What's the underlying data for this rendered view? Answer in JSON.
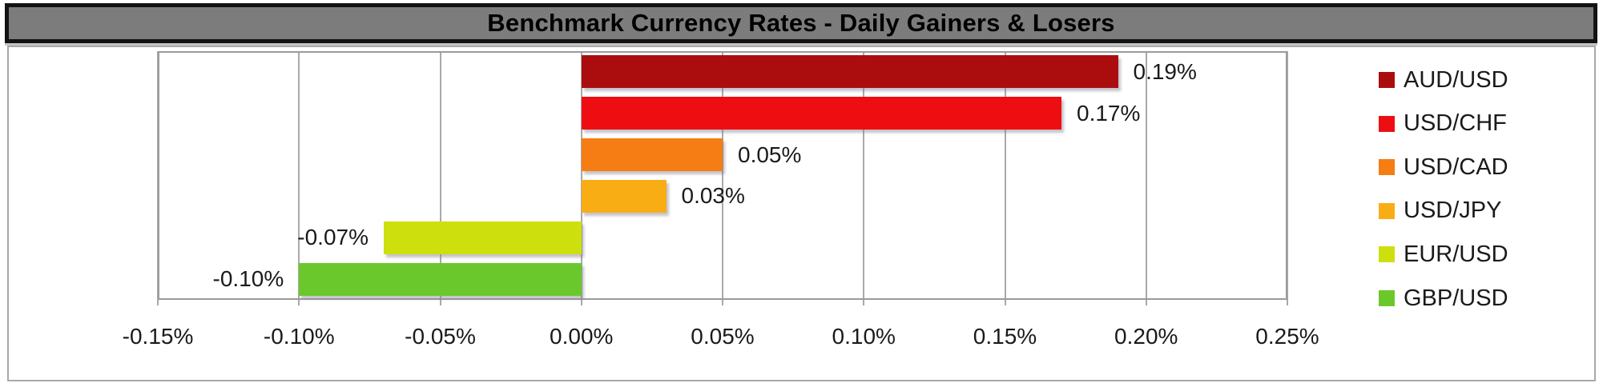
{
  "title_bar": {
    "text": "Benchmark Currency Rates - Daily Gainers & Losers",
    "background": "#7c7c7c",
    "border_color": "#131313",
    "text_color": "#000000"
  },
  "chart_data": {
    "type": "bar",
    "orientation": "horizontal",
    "title": "Benchmark Currency Rates - Daily Gainers & Losers",
    "categories": [
      "AUD/USD",
      "USD/CHF",
      "USD/CAD",
      "USD/JPY",
      "EUR/USD",
      "GBP/USD"
    ],
    "series": [
      {
        "name": "AUD/USD",
        "value": 0.19,
        "label": "0.19%",
        "color": "#AB0D0E"
      },
      {
        "name": "USD/CHF",
        "value": 0.17,
        "label": "0.17%",
        "color": "#EE0E11"
      },
      {
        "name": "USD/CAD",
        "value": 0.05,
        "label": "0.05%",
        "color": "#F57D13"
      },
      {
        "name": "USD/JPY",
        "value": 0.03,
        "label": "0.03%",
        "color": "#F9AD15"
      },
      {
        "name": "EUR/USD",
        "value": -0.07,
        "label": "-0.07%",
        "color": "#CDE00E"
      },
      {
        "name": "GBP/USD",
        "value": -0.1,
        "label": "-0.10%",
        "color": "#6BC82C"
      }
    ],
    "xlim": [
      -0.15,
      0.25
    ],
    "x_ticks": [
      {
        "value": -0.15,
        "label": "-0.15%"
      },
      {
        "value": -0.1,
        "label": "-0.10%"
      },
      {
        "value": -0.05,
        "label": "-0.05%"
      },
      {
        "value": 0.0,
        "label": "0.00%"
      },
      {
        "value": 0.05,
        "label": "0.05%"
      },
      {
        "value": 0.1,
        "label": "0.10%"
      },
      {
        "value": 0.15,
        "label": "0.15%"
      },
      {
        "value": 0.2,
        "label": "0.20%"
      },
      {
        "value": 0.25,
        "label": "0.25%"
      }
    ],
    "grid": true,
    "legend_position": "right",
    "value_label_format": "percent"
  }
}
